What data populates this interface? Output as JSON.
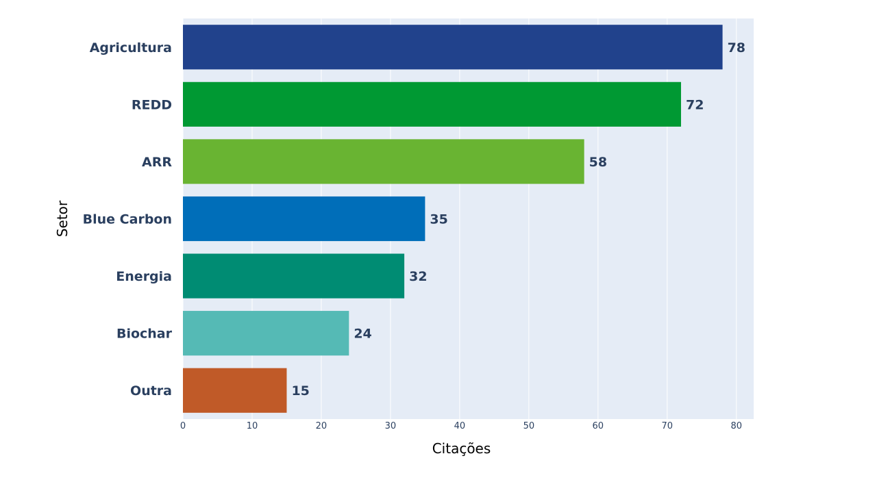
{
  "chart_data": {
    "type": "bar",
    "orientation": "horizontal",
    "title": "",
    "xlabel": "Citações",
    "ylabel": "Setor",
    "categories": [
      "Agricultura",
      "REDD",
      "ARR",
      "Blue Carbon",
      "Energia",
      "Biochar",
      "Outra"
    ],
    "values": [
      78,
      72,
      58,
      35,
      32,
      24,
      15
    ],
    "data_labels": [
      "78",
      "72",
      "58",
      "35",
      "32",
      "24",
      "15"
    ],
    "colors": [
      "#21428c",
      "#009933",
      "#69b432",
      "#006eb9",
      "#008c73",
      "#55bab5",
      "#c05a28"
    ],
    "xlim": [
      0,
      82.5
    ],
    "xticks": [
      0,
      10,
      20,
      30,
      40,
      50,
      60,
      70,
      80
    ],
    "xtick_labels": [
      "0",
      "10",
      "20",
      "30",
      "40",
      "50",
      "60",
      "70",
      "80"
    ],
    "grid": true,
    "plot_background": "#e5ecf6",
    "grid_color": "#ffffff"
  }
}
